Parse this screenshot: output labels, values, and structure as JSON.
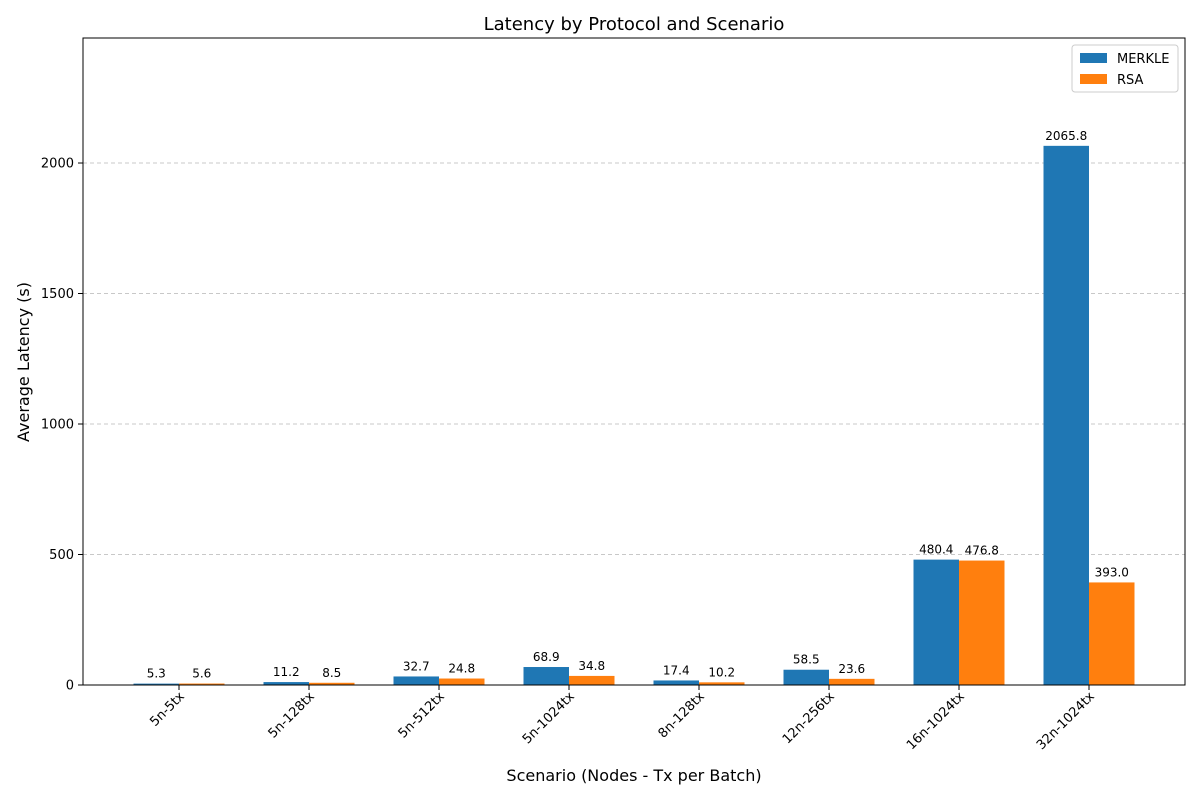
{
  "chart_data": {
    "type": "bar",
    "title": "Latency by Protocol and Scenario",
    "xlabel": "Scenario (Nodes - Tx per Batch)",
    "ylabel": "Average Latency (s)",
    "categories": [
      "5n-5tx",
      "5n-128tx",
      "5n-512tx",
      "5n-1024tx",
      "8n-128tx",
      "12n-256tx",
      "16n-1024tx",
      "32n-1024tx"
    ],
    "series": [
      {
        "name": "MERKLE",
        "color": "#1f77b4",
        "values": [
          5.3,
          11.2,
          32.7,
          68.9,
          17.4,
          58.5,
          480.4,
          2065.8
        ]
      },
      {
        "name": "RSA",
        "color": "#ff7f0e",
        "values": [
          5.6,
          8.5,
          24.8,
          34.8,
          10.2,
          23.6,
          476.8,
          393.0
        ]
      }
    ],
    "ylim": [
      0,
      2479
    ],
    "yticks": [
      0,
      500,
      1000,
      1500,
      2000
    ],
    "grid": "y-dashed",
    "legend_position": "top-right",
    "xtick_rotation": 45
  }
}
